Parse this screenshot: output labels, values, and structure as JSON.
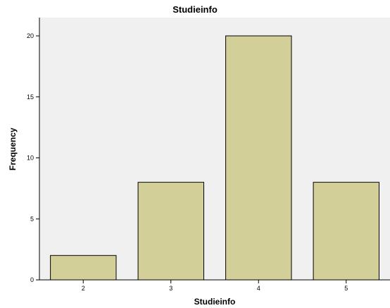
{
  "chart_data": {
    "type": "bar",
    "title": "Studieinfo",
    "xlabel": "Studieinfo",
    "ylabel": "Frequency",
    "categories": [
      "2",
      "3",
      "4",
      "5"
    ],
    "values": [
      2,
      8,
      20,
      8
    ],
    "ylim": [
      0,
      21.5
    ],
    "yticks": [
      0,
      5,
      10,
      15,
      20
    ],
    "grid": false,
    "colors": {
      "bar_fill": "#d3cf98",
      "bar_stroke": "#000000",
      "plot_background": "#f0f0f0",
      "axis": "#000000"
    }
  }
}
